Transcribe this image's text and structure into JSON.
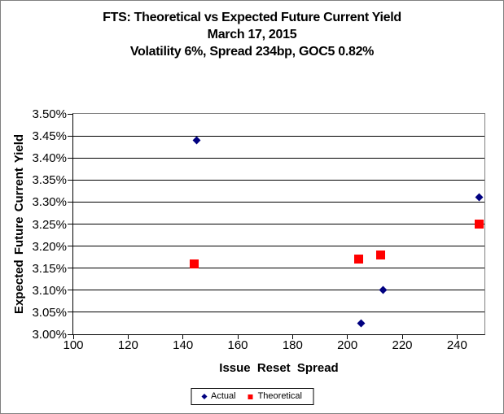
{
  "title": {
    "line1": "FTS: Theoretical vs Expected Future Current Yield",
    "line2": "March 17, 2015",
    "line3": "Volatility 6%, Spread 234bp, GOC5 0.82%"
  },
  "chart_data": {
    "type": "scatter",
    "xlabel": "Issue Reset Spread",
    "ylabel": "Expected Future Current Yield",
    "xlim": [
      100,
      250
    ],
    "ylim": [
      3.0,
      3.5
    ],
    "x_ticks": [
      100,
      120,
      140,
      160,
      180,
      200,
      220,
      240
    ],
    "y_ticks": [
      {
        "value": 3.0,
        "label": "3.00%"
      },
      {
        "value": 3.05,
        "label": "3.05%"
      },
      {
        "value": 3.1,
        "label": "3.10%"
      },
      {
        "value": 3.15,
        "label": "3.15%"
      },
      {
        "value": 3.2,
        "label": "3.20%"
      },
      {
        "value": 3.25,
        "label": "3.25%"
      },
      {
        "value": 3.3,
        "label": "3.30%"
      },
      {
        "value": 3.35,
        "label": "3.35%"
      },
      {
        "value": 3.4,
        "label": "3.40%"
      },
      {
        "value": 3.45,
        "label": "3.45%"
      },
      {
        "value": 3.5,
        "label": "3.50%"
      }
    ],
    "grid": "horizontal-only",
    "legend_position": "bottom-center",
    "series": [
      {
        "name": "Actual",
        "marker": "diamond",
        "color": "#000080",
        "points": [
          [
            145,
            3.44
          ],
          [
            205,
            3.025
          ],
          [
            213,
            3.1
          ],
          [
            248,
            3.31
          ]
        ]
      },
      {
        "name": "Theoretical",
        "marker": "square",
        "color": "#FF0000",
        "points": [
          [
            144,
            3.16
          ],
          [
            204,
            3.17
          ],
          [
            212,
            3.18
          ],
          [
            248,
            3.25
          ]
        ]
      }
    ]
  },
  "colors": {
    "axis": "#000000",
    "gridline": "#000000",
    "plot_border": "#808080",
    "chart_border": "#808080",
    "background": "#FFFFFF"
  }
}
